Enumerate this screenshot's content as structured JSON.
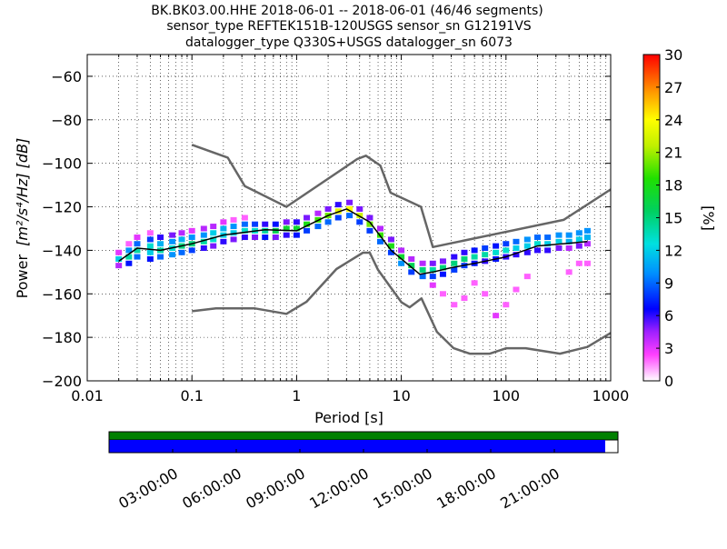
{
  "chart_data": {
    "type": "heatmap",
    "title_lines": [
      "BK.BK03.00.HHE   2018-06-01 -- 2018-06-01  (46/46 segments)",
      "sensor_type REFTEK151B-120USGS sensor_sn G12191VS",
      "datalogger_type Q330S+USGS datalogger_sn 6073"
    ],
    "xlabel": "Period [s]",
    "ylabel_text": "Power",
    "ylabel_units": "[m²/s⁴/Hz] [dB]",
    "x_scale": "log",
    "xlim": [
      0.01,
      1000
    ],
    "ylim": [
      -200,
      -50
    ],
    "x_ticks": [
      {
        "value": 0.01,
        "label": "0.01"
      },
      {
        "value": 0.1,
        "label": "0.1"
      },
      {
        "value": 1,
        "label": "1"
      },
      {
        "value": 10,
        "label": "10"
      },
      {
        "value": 100,
        "label": "100"
      },
      {
        "value": 1000,
        "label": "1000"
      }
    ],
    "y_ticks": [
      {
        "value": -60,
        "label": "−60"
      },
      {
        "value": -80,
        "label": "−80"
      },
      {
        "value": -100,
        "label": "−100"
      },
      {
        "value": -120,
        "label": "−120"
      },
      {
        "value": -140,
        "label": "−140"
      },
      {
        "value": -160,
        "label": "−160"
      },
      {
        "value": -180,
        "label": "−180"
      },
      {
        "value": -200,
        "label": "−200"
      }
    ],
    "grid": true,
    "colorbar": {
      "label": "[%]",
      "range": [
        0,
        30
      ],
      "ticks": [
        {
          "value": 0,
          "label": "0"
        },
        {
          "value": 3,
          "label": "3"
        },
        {
          "value": 6,
          "label": "6"
        },
        {
          "value": 9,
          "label": "9"
        },
        {
          "value": 12,
          "label": "12"
        },
        {
          "value": 15,
          "label": "15"
        },
        {
          "value": 18,
          "label": "18"
        },
        {
          "value": 21,
          "label": "21"
        },
        {
          "value": 24,
          "label": "24"
        },
        {
          "value": 27,
          "label": "27"
        },
        {
          "value": 30,
          "label": "30"
        }
      ]
    },
    "nhnm": {
      "name": "New High Noise Model",
      "color": "#666666",
      "x": [
        0.1,
        0.22,
        0.32,
        0.8,
        3.8,
        4.6,
        6.3,
        7.9,
        15.4,
        20,
        354.8,
        1000
      ],
      "y": [
        -91.5,
        -97.4,
        -110.5,
        -120,
        -98,
        -96.5,
        -101,
        -113.5,
        -120,
        -138.5,
        -126,
        -112
      ]
    },
    "nlnm": {
      "name": "New Low Noise Model",
      "color": "#666666",
      "x": [
        0.1,
        0.17,
        0.4,
        0.8,
        1.24,
        2.4,
        4.3,
        5,
        6,
        10,
        12,
        15.6,
        21.9,
        31.6,
        45,
        70,
        101,
        154,
        328,
        600,
        1000
      ],
      "y": [
        -168,
        -166.7,
        -166.7,
        -169.2,
        -163.7,
        -148.6,
        -141.1,
        -141.1,
        -149,
        -163.8,
        -166.2,
        -162.1,
        -177.5,
        -185,
        -187.5,
        -187.5,
        -185,
        -185,
        -187.5,
        -184.4,
        -178
      ]
    },
    "median": {
      "name": "Median",
      "color": "#000000",
      "x": [
        0.02,
        0.03,
        0.05,
        0.1,
        0.2,
        0.5,
        1,
        2,
        3,
        5,
        8,
        15,
        20,
        30,
        50,
        100,
        200,
        600
      ],
      "y": [
        -145,
        -139,
        -140,
        -137,
        -133,
        -130.5,
        -131,
        -124,
        -121,
        -127,
        -140,
        -151,
        -150,
        -148,
        -146,
        -143,
        -138,
        -136
      ]
    },
    "density_cells": [
      {
        "x": 0.02,
        "y": -147,
        "pct": 4
      },
      {
        "x": 0.02,
        "y": -144,
        "pct": 12
      },
      {
        "x": 0.02,
        "y": -141,
        "pct": 3
      },
      {
        "x": 0.025,
        "y": -146,
        "pct": 7
      },
      {
        "x": 0.025,
        "y": -143,
        "pct": 14
      },
      {
        "x": 0.025,
        "y": -140,
        "pct": 10
      },
      {
        "x": 0.025,
        "y": -137,
        "pct": 2
      },
      {
        "x": 0.03,
        "y": -143,
        "pct": 9
      },
      {
        "x": 0.03,
        "y": -140,
        "pct": 14
      },
      {
        "x": 0.03,
        "y": -137,
        "pct": 9
      },
      {
        "x": 0.03,
        "y": -134,
        "pct": 3
      },
      {
        "x": 0.04,
        "y": -144,
        "pct": 7
      },
      {
        "x": 0.04,
        "y": -141,
        "pct": 12
      },
      {
        "x": 0.04,
        "y": -138,
        "pct": 13
      },
      {
        "x": 0.04,
        "y": -135,
        "pct": 8
      },
      {
        "x": 0.04,
        "y": -132,
        "pct": 2
      },
      {
        "x": 0.05,
        "y": -143,
        "pct": 9
      },
      {
        "x": 0.05,
        "y": -140,
        "pct": 14
      },
      {
        "x": 0.05,
        "y": -137,
        "pct": 11
      },
      {
        "x": 0.05,
        "y": -134,
        "pct": 6
      },
      {
        "x": 0.065,
        "y": -142,
        "pct": 10
      },
      {
        "x": 0.065,
        "y": -139,
        "pct": 13
      },
      {
        "x": 0.065,
        "y": -136,
        "pct": 10
      },
      {
        "x": 0.065,
        "y": -133,
        "pct": 5
      },
      {
        "x": 0.08,
        "y": -141,
        "pct": 9
      },
      {
        "x": 0.08,
        "y": -138,
        "pct": 15
      },
      {
        "x": 0.08,
        "y": -135,
        "pct": 11
      },
      {
        "x": 0.08,
        "y": -132,
        "pct": 4
      },
      {
        "x": 0.1,
        "y": -140,
        "pct": 8
      },
      {
        "x": 0.1,
        "y": -137,
        "pct": 15
      },
      {
        "x": 0.1,
        "y": -134,
        "pct": 10
      },
      {
        "x": 0.1,
        "y": -131,
        "pct": 3
      },
      {
        "x": 0.13,
        "y": -139,
        "pct": 6
      },
      {
        "x": 0.13,
        "y": -136,
        "pct": 14
      },
      {
        "x": 0.13,
        "y": -133,
        "pct": 10
      },
      {
        "x": 0.13,
        "y": -130,
        "pct": 4
      },
      {
        "x": 0.16,
        "y": -138,
        "pct": 5
      },
      {
        "x": 0.16,
        "y": -135,
        "pct": 13
      },
      {
        "x": 0.16,
        "y": -132,
        "pct": 12
      },
      {
        "x": 0.16,
        "y": -129,
        "pct": 4
      },
      {
        "x": 0.2,
        "y": -136,
        "pct": 6
      },
      {
        "x": 0.2,
        "y": -133,
        "pct": 12
      },
      {
        "x": 0.2,
        "y": -130,
        "pct": 11
      },
      {
        "x": 0.2,
        "y": -127,
        "pct": 3
      },
      {
        "x": 0.25,
        "y": -135,
        "pct": 5
      },
      {
        "x": 0.25,
        "y": -132,
        "pct": 12
      },
      {
        "x": 0.25,
        "y": -129,
        "pct": 10
      },
      {
        "x": 0.25,
        "y": -126,
        "pct": 2
      },
      {
        "x": 0.32,
        "y": -134,
        "pct": 6
      },
      {
        "x": 0.32,
        "y": -131,
        "pct": 13
      },
      {
        "x": 0.32,
        "y": -128,
        "pct": 9
      },
      {
        "x": 0.32,
        "y": -125,
        "pct": 2
      },
      {
        "x": 0.4,
        "y": -134,
        "pct": 5
      },
      {
        "x": 0.4,
        "y": -131,
        "pct": 13
      },
      {
        "x": 0.4,
        "y": -128,
        "pct": 8
      },
      {
        "x": 0.5,
        "y": -134,
        "pct": 7
      },
      {
        "x": 0.5,
        "y": -131,
        "pct": 14
      },
      {
        "x": 0.5,
        "y": -128,
        "pct": 6
      },
      {
        "x": 0.63,
        "y": -134,
        "pct": 5
      },
      {
        "x": 0.63,
        "y": -131,
        "pct": 16
      },
      {
        "x": 0.63,
        "y": -128,
        "pct": 7
      },
      {
        "x": 0.8,
        "y": -133,
        "pct": 6
      },
      {
        "x": 0.8,
        "y": -130,
        "pct": 17
      },
      {
        "x": 0.8,
        "y": -127,
        "pct": 5
      },
      {
        "x": 1,
        "y": -133,
        "pct": 7
      },
      {
        "x": 1,
        "y": -130,
        "pct": 17
      },
      {
        "x": 1,
        "y": -127,
        "pct": 6
      },
      {
        "x": 1.25,
        "y": -131,
        "pct": 8
      },
      {
        "x": 1.25,
        "y": -128,
        "pct": 18
      },
      {
        "x": 1.25,
        "y": -125,
        "pct": 5
      },
      {
        "x": 1.6,
        "y": -129,
        "pct": 9
      },
      {
        "x": 1.6,
        "y": -126,
        "pct": 19
      },
      {
        "x": 1.6,
        "y": -123,
        "pct": 4
      },
      {
        "x": 2,
        "y": -127,
        "pct": 9
      },
      {
        "x": 2,
        "y": -124,
        "pct": 20
      },
      {
        "x": 2,
        "y": -121,
        "pct": 5
      },
      {
        "x": 2.5,
        "y": -125,
        "pct": 8
      },
      {
        "x": 2.5,
        "y": -122,
        "pct": 23
      },
      {
        "x": 2.5,
        "y": -119,
        "pct": 6
      },
      {
        "x": 3.2,
        "y": -124,
        "pct": 9
      },
      {
        "x": 3.2,
        "y": -121,
        "pct": 24
      },
      {
        "x": 3.2,
        "y": -118,
        "pct": 5
      },
      {
        "x": 4,
        "y": -127,
        "pct": 8
      },
      {
        "x": 4,
        "y": -124,
        "pct": 22
      },
      {
        "x": 4,
        "y": -121,
        "pct": 5
      },
      {
        "x": 5,
        "y": -131,
        "pct": 8
      },
      {
        "x": 5,
        "y": -128,
        "pct": 20
      },
      {
        "x": 5,
        "y": -125,
        "pct": 5
      },
      {
        "x": 6.3,
        "y": -136,
        "pct": 9
      },
      {
        "x": 6.3,
        "y": -133,
        "pct": 19
      },
      {
        "x": 6.3,
        "y": -130,
        "pct": 4
      },
      {
        "x": 8,
        "y": -141,
        "pct": 8
      },
      {
        "x": 8,
        "y": -138,
        "pct": 18
      },
      {
        "x": 8,
        "y": -135,
        "pct": 5
      },
      {
        "x": 10,
        "y": -146,
        "pct": 10
      },
      {
        "x": 10,
        "y": -143,
        "pct": 17
      },
      {
        "x": 10,
        "y": -140,
        "pct": 4
      },
      {
        "x": 12.5,
        "y": -150,
        "pct": 8
      },
      {
        "x": 12.5,
        "y": -147,
        "pct": 16
      },
      {
        "x": 12.5,
        "y": -144,
        "pct": 4
      },
      {
        "x": 16,
        "y": -152,
        "pct": 9
      },
      {
        "x": 16,
        "y": -149,
        "pct": 15
      },
      {
        "x": 16,
        "y": -146,
        "pct": 4
      },
      {
        "x": 20,
        "y": -152,
        "pct": 8
      },
      {
        "x": 20,
        "y": -149,
        "pct": 14
      },
      {
        "x": 20,
        "y": -146,
        "pct": 5
      },
      {
        "x": 20,
        "y": -156,
        "pct": 3
      },
      {
        "x": 25,
        "y": -151,
        "pct": 7
      },
      {
        "x": 25,
        "y": -148,
        "pct": 15
      },
      {
        "x": 25,
        "y": -145,
        "pct": 5
      },
      {
        "x": 25,
        "y": -160,
        "pct": 2
      },
      {
        "x": 32,
        "y": -149,
        "pct": 8
      },
      {
        "x": 32,
        "y": -146,
        "pct": 15
      },
      {
        "x": 32,
        "y": -143,
        "pct": 6
      },
      {
        "x": 32,
        "y": -165,
        "pct": 2
      },
      {
        "x": 40,
        "y": -147,
        "pct": 8
      },
      {
        "x": 40,
        "y": -144,
        "pct": 15
      },
      {
        "x": 40,
        "y": -141,
        "pct": 6
      },
      {
        "x": 40,
        "y": -162,
        "pct": 2
      },
      {
        "x": 50,
        "y": -146,
        "pct": 7
      },
      {
        "x": 50,
        "y": -143,
        "pct": 14
      },
      {
        "x": 50,
        "y": -140,
        "pct": 7
      },
      {
        "x": 50,
        "y": -155,
        "pct": 2
      },
      {
        "x": 63,
        "y": -145,
        "pct": 6
      },
      {
        "x": 63,
        "y": -142,
        "pct": 14
      },
      {
        "x": 63,
        "y": -139,
        "pct": 8
      },
      {
        "x": 63,
        "y": -160,
        "pct": 2
      },
      {
        "x": 80,
        "y": -144,
        "pct": 7
      },
      {
        "x": 80,
        "y": -141,
        "pct": 13
      },
      {
        "x": 80,
        "y": -138,
        "pct": 7
      },
      {
        "x": 80,
        "y": -170,
        "pct": 3
      },
      {
        "x": 100,
        "y": -143,
        "pct": 6
      },
      {
        "x": 100,
        "y": -140,
        "pct": 13
      },
      {
        "x": 100,
        "y": -137,
        "pct": 8
      },
      {
        "x": 100,
        "y": -165,
        "pct": 2
      },
      {
        "x": 125,
        "y": -142,
        "pct": 6
      },
      {
        "x": 125,
        "y": -139,
        "pct": 12
      },
      {
        "x": 125,
        "y": -136,
        "pct": 9
      },
      {
        "x": 125,
        "y": -158,
        "pct": 2
      },
      {
        "x": 160,
        "y": -141,
        "pct": 6
      },
      {
        "x": 160,
        "y": -138,
        "pct": 12
      },
      {
        "x": 160,
        "y": -135,
        "pct": 10
      },
      {
        "x": 160,
        "y": -152,
        "pct": 2
      },
      {
        "x": 200,
        "y": -140,
        "pct": 6
      },
      {
        "x": 200,
        "y": -137,
        "pct": 13
      },
      {
        "x": 200,
        "y": -134,
        "pct": 9
      },
      {
        "x": 250,
        "y": -140,
        "pct": 6
      },
      {
        "x": 250,
        "y": -137,
        "pct": 12
      },
      {
        "x": 250,
        "y": -134,
        "pct": 9
      },
      {
        "x": 320,
        "y": -139,
        "pct": 5
      },
      {
        "x": 320,
        "y": -136,
        "pct": 12
      },
      {
        "x": 320,
        "y": -133,
        "pct": 10
      },
      {
        "x": 400,
        "y": -139,
        "pct": 4
      },
      {
        "x": 400,
        "y": -136,
        "pct": 11
      },
      {
        "x": 400,
        "y": -133,
        "pct": 10
      },
      {
        "x": 400,
        "y": -150,
        "pct": 2
      },
      {
        "x": 500,
        "y": -138,
        "pct": 5
      },
      {
        "x": 500,
        "y": -135,
        "pct": 12
      },
      {
        "x": 500,
        "y": -132,
        "pct": 10
      },
      {
        "x": 500,
        "y": -146,
        "pct": 2
      },
      {
        "x": 600,
        "y": -137,
        "pct": 4
      },
      {
        "x": 600,
        "y": -134,
        "pct": 11
      },
      {
        "x": 600,
        "y": -131,
        "pct": 10
      },
      {
        "x": 600,
        "y": -146,
        "pct": 2
      }
    ]
  },
  "coverage": {
    "data_fraction": 0.975,
    "data_color": "#0000ff",
    "gap_color": "#ffffff",
    "top_strip_color": "#008000",
    "time_labels": [
      "03:00:00",
      "06:00:00",
      "09:00:00",
      "12:00:00",
      "15:00:00",
      "18:00:00",
      "21:00:00"
    ]
  }
}
